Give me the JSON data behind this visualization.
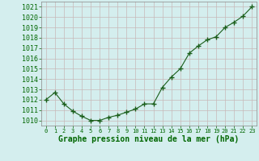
{
  "x": [
    0,
    1,
    2,
    3,
    4,
    5,
    6,
    7,
    8,
    9,
    10,
    11,
    12,
    13,
    14,
    15,
    16,
    17,
    18,
    19,
    20,
    21,
    22,
    23
  ],
  "y": [
    1012.0,
    1012.7,
    1011.6,
    1010.9,
    1010.4,
    1010.0,
    1010.0,
    1010.3,
    1010.5,
    1010.8,
    1011.1,
    1011.6,
    1011.6,
    1013.2,
    1014.2,
    1015.0,
    1016.5,
    1017.2,
    1017.8,
    1018.1,
    1019.0,
    1019.5,
    1020.1,
    1021.0
  ],
  "xlabel": "Graphe pression niveau de la mer (hPa)",
  "ylim": [
    1009.5,
    1021.5
  ],
  "xlim": [
    -0.5,
    23.5
  ],
  "yticks": [
    1010,
    1011,
    1012,
    1013,
    1014,
    1015,
    1016,
    1017,
    1018,
    1019,
    1020,
    1021
  ],
  "xtick_labels": [
    "0",
    "1",
    "2",
    "3",
    "4",
    "5",
    "6",
    "7",
    "8",
    "9",
    "10",
    "11",
    "12",
    "13",
    "14",
    "15",
    "16",
    "17",
    "18",
    "19",
    "20",
    "21",
    "22",
    "23"
  ],
  "line_color": "#1a5e1a",
  "marker_color": "#1a5e1a",
  "bg_color": "#d4eeee",
  "grid_color": "#c8b8b8",
  "xlabel_color": "#006600",
  "xlabel_fontsize": 7,
  "ytick_fontsize": 6,
  "xtick_fontsize": 5
}
